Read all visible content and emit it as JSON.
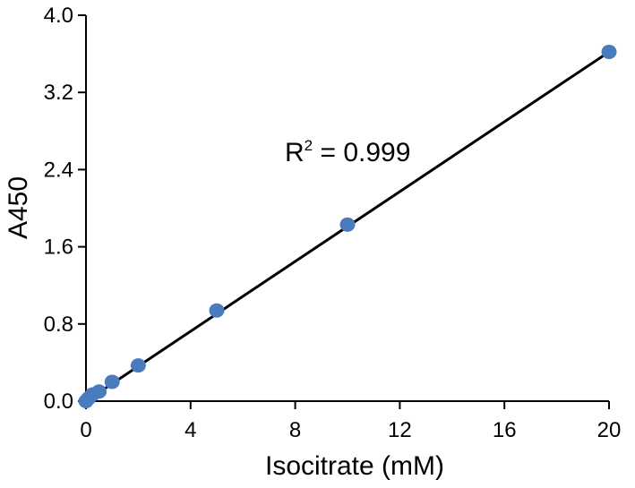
{
  "chart_data": {
    "type": "scatter",
    "xlabel": "Isocitrate (mM)",
    "ylabel": "A450",
    "xlim": [
      0,
      20
    ],
    "ylim": [
      0,
      4.0
    ],
    "x_ticks": [
      "0",
      "4",
      "8",
      "12",
      "16",
      "20"
    ],
    "y_ticks": [
      "0.0",
      "0.8",
      "1.6",
      "2.4",
      "3.2",
      "4.0"
    ],
    "grid": false,
    "series": [
      {
        "x": [
          0,
          0.1,
          0.25,
          0.5,
          1,
          2,
          5,
          10,
          20
        ],
        "y": [
          0.0,
          0.03,
          0.07,
          0.1,
          0.2,
          0.37,
          0.94,
          1.83,
          3.62
        ]
      }
    ],
    "fit_line": {
      "x": [
        0,
        20
      ],
      "y": [
        0.0,
        3.62
      ]
    },
    "annotation": {
      "text": "R",
      "superscript": "2",
      "rest": " = 0.999"
    },
    "colors": {
      "marker": "#4a7bbd",
      "line": "#000000"
    }
  }
}
